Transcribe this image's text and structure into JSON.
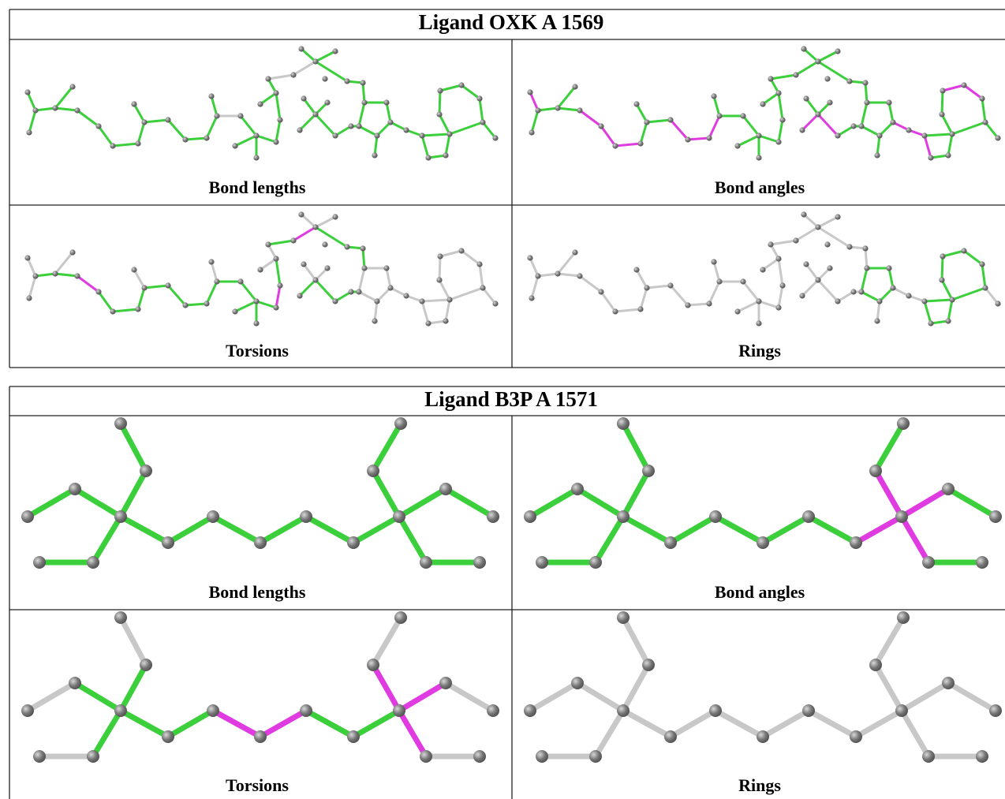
{
  "tables": [
    {
      "title": "Ligand OXK A 1569",
      "cells": [
        [
          "Bond lengths",
          "Bond angles"
        ],
        [
          "Torsions",
          "Rings"
        ]
      ]
    },
    {
      "title": "Ligand B3P A 1571",
      "cells": [
        [
          "Bond lengths",
          "Bond angles"
        ],
        [
          "Torsions",
          "Rings"
        ]
      ]
    }
  ]
}
